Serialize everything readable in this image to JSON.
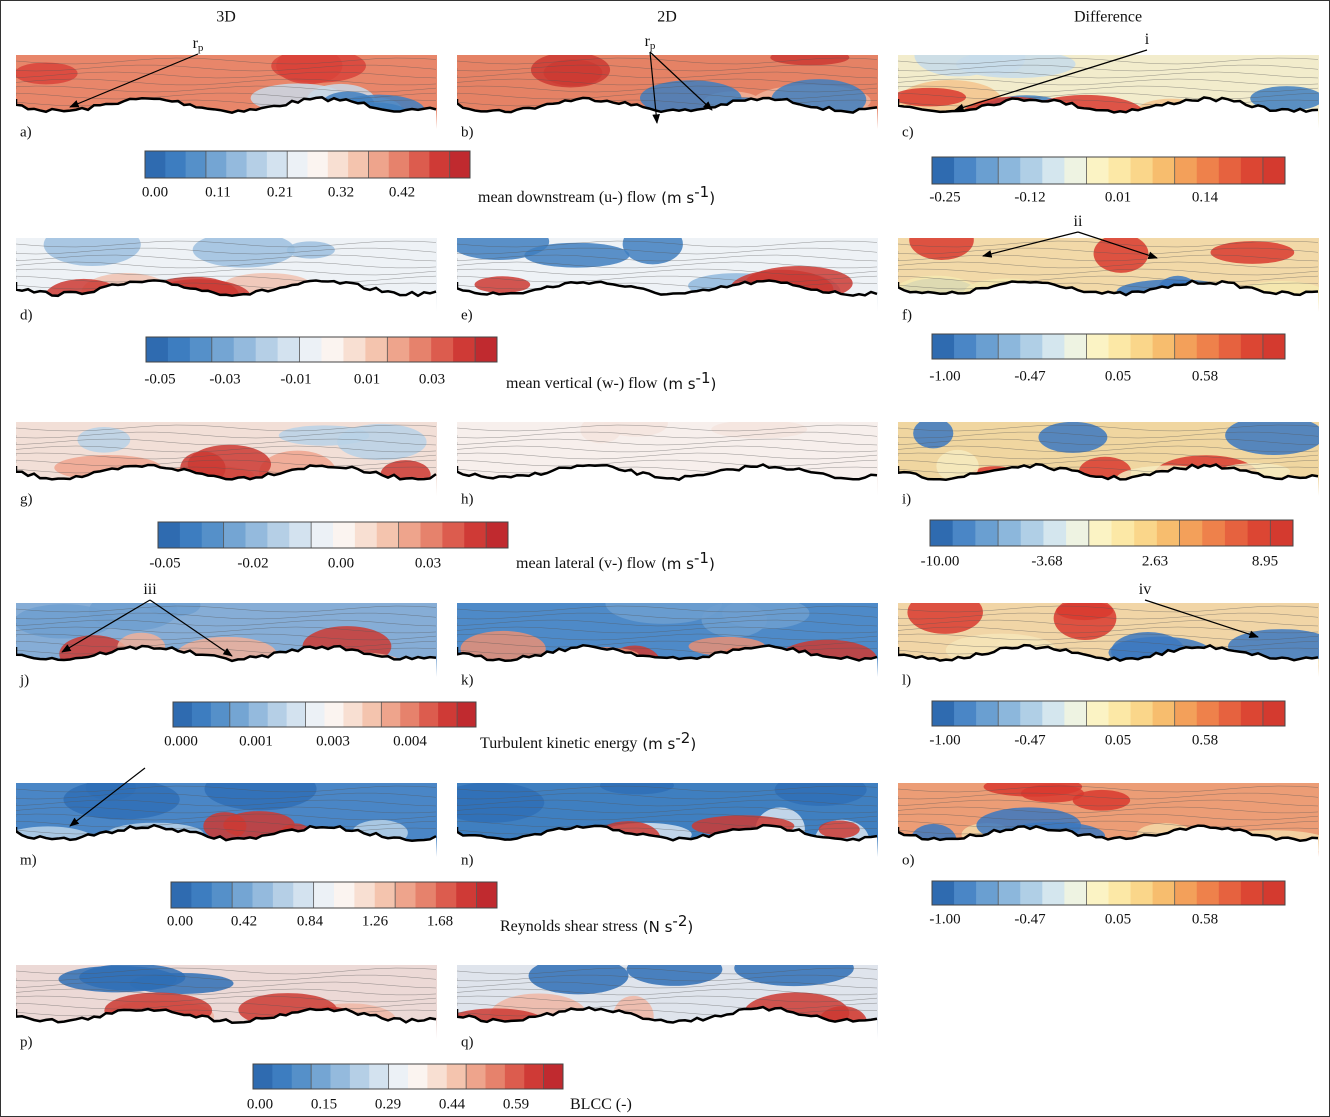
{
  "columns": [
    "3D",
    "2D",
    "Difference"
  ],
  "panel_labels": [
    "a)",
    "b)",
    "c)",
    "d)",
    "e)",
    "f)",
    "g)",
    "h)",
    "i)",
    "j)",
    "k)",
    "l)",
    "m)",
    "n)",
    "o)",
    "p)",
    "q)"
  ],
  "annotations": [
    {
      "text": "r",
      "sub": "p"
    },
    {
      "text": "r",
      "sub": "p"
    },
    {
      "text": "i"
    },
    {
      "text": "ii"
    },
    {
      "text": "iii"
    },
    {
      "text": "iv"
    }
  ],
  "scales": [
    {
      "ticks": [
        "0.00",
        "0.11",
        "0.21",
        "0.32",
        "0.42"
      ],
      "caption": "mean downstream (u-) flow",
      "unit": [
        "(m s",
        "-1",
        ")"
      ]
    },
    {
      "ticks": [
        "-0.05",
        "-0.03",
        "-0.01",
        "0.01",
        "0.03"
      ],
      "caption": "mean vertical (w-) flow",
      "unit": [
        "(m s",
        "-1",
        ")"
      ]
    },
    {
      "ticks": [
        "-0.05",
        "-0.02",
        "0.00",
        "0.03"
      ],
      "caption": "mean lateral (v-) flow",
      "unit": [
        "(m s",
        "-1",
        ")"
      ]
    },
    {
      "ticks": [
        "0.000",
        "0.001",
        "0.003",
        "0.004"
      ],
      "caption": "Turbulent kinetic energy",
      "unit": [
        "(m s",
        "-2",
        ")"
      ]
    },
    {
      "ticks": [
        "0.00",
        "0.42",
        "0.84",
        "1.26",
        "1.68"
      ],
      "caption": "Reynolds shear stress",
      "unit": [
        "(N s",
        "-2",
        ")"
      ]
    },
    {
      "ticks": [
        "0.00",
        "0.15",
        "0.29",
        "0.44",
        "0.59"
      ],
      "caption": "BLCC (-)"
    }
  ],
  "difference_scales": [
    {
      "ticks": [
        "-0.25",
        "-0.12",
        "0.01",
        "0.14"
      ]
    },
    {
      "ticks": [
        "-1.00",
        "-0.47",
        "0.05",
        "0.58"
      ]
    },
    {
      "ticks": [
        "-10.00",
        "-3.68",
        "2.63",
        "8.95"
      ]
    },
    {
      "ticks": [
        "-1.00",
        "-0.47",
        "0.05",
        "0.58"
      ]
    },
    {
      "ticks": [
        "-1.00",
        "-0.47",
        "0.05",
        "0.58"
      ]
    }
  ]
}
